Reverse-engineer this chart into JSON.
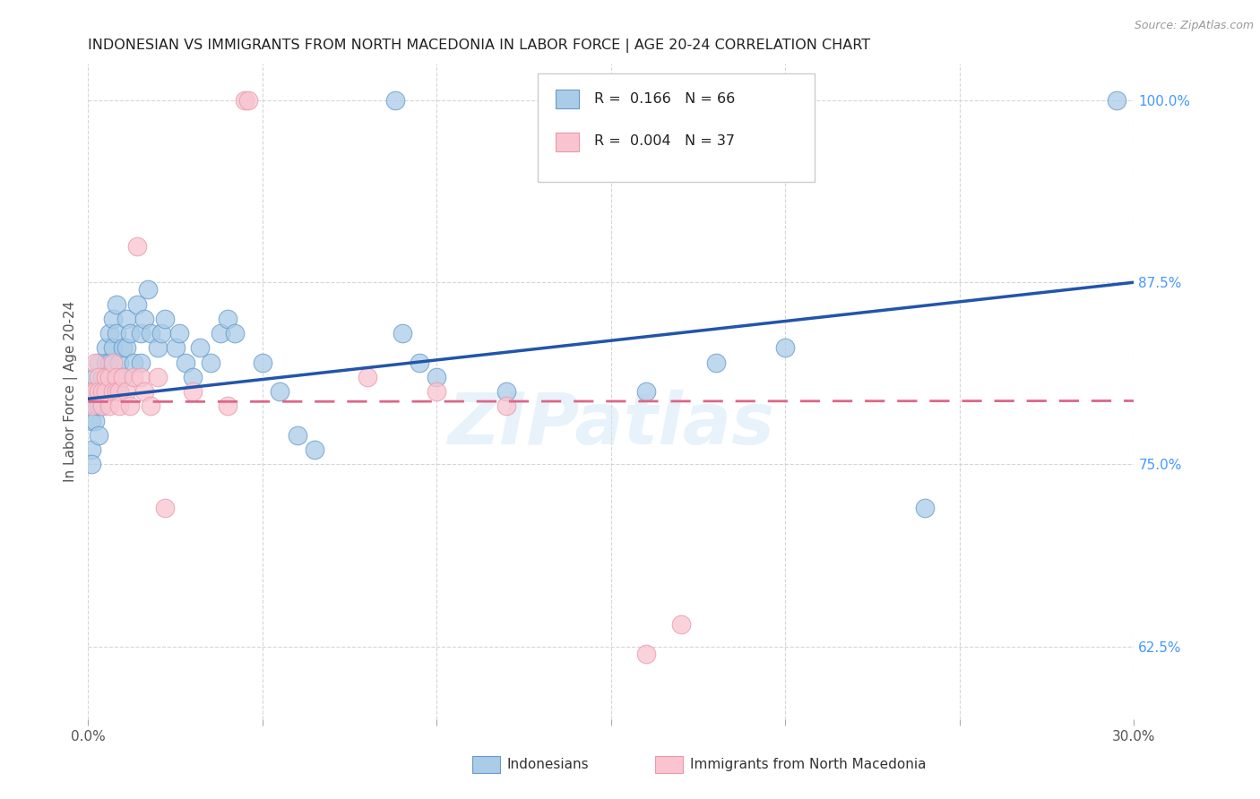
{
  "title": "INDONESIAN VS IMMIGRANTS FROM NORTH MACEDONIA IN LABOR FORCE | AGE 20-24 CORRELATION CHART",
  "source": "Source: ZipAtlas.com",
  "ylabel": "In Labor Force | Age 20-24",
  "xlim": [
    0.0,
    0.3
  ],
  "ylim": [
    0.575,
    1.025
  ],
  "xtick_positions": [
    0.0,
    0.05,
    0.1,
    0.15,
    0.2,
    0.25,
    0.3
  ],
  "xticklabels": [
    "0.0%",
    "",
    "",
    "",
    "",
    "",
    "30.0%"
  ],
  "ytick_positions": [
    0.625,
    0.75,
    0.875,
    1.0
  ],
  "yticklabels": [
    "62.5%",
    "75.0%",
    "87.5%",
    "100.0%"
  ],
  "blue_color": "#aacce8",
  "blue_edge_color": "#6699cc",
  "pink_color": "#f9c4d0",
  "pink_edge_color": "#e89aaa",
  "blue_line_color": "#2255aa",
  "pink_line_color": "#dd6688",
  "background_color": "#ffffff",
  "grid_color": "#cccccc",
  "legend_R_blue": "0.166",
  "legend_N_blue": "66",
  "legend_R_pink": "0.004",
  "legend_N_pink": "37",
  "watermark": "ZIPatlas",
  "blue_x": [
    0.001,
    0.001,
    0.001,
    0.001,
    0.001,
    0.002,
    0.002,
    0.002,
    0.002,
    0.003,
    0.003,
    0.003,
    0.003,
    0.004,
    0.004,
    0.004,
    0.005,
    0.005,
    0.005,
    0.006,
    0.006,
    0.006,
    0.007,
    0.007,
    0.008,
    0.008,
    0.009,
    0.009,
    0.01,
    0.01,
    0.011,
    0.011,
    0.012,
    0.013,
    0.014,
    0.015,
    0.015,
    0.016,
    0.017,
    0.018,
    0.02,
    0.021,
    0.022,
    0.025,
    0.026,
    0.028,
    0.03,
    0.032,
    0.035,
    0.038,
    0.04,
    0.042,
    0.05,
    0.055,
    0.06,
    0.065,
    0.09,
    0.095,
    0.1,
    0.12,
    0.16,
    0.18,
    0.2,
    0.24,
    0.295,
    0.088
  ],
  "blue_y": [
    0.8,
    0.79,
    0.78,
    0.76,
    0.75,
    0.81,
    0.8,
    0.79,
    0.78,
    0.82,
    0.8,
    0.79,
    0.77,
    0.81,
    0.8,
    0.79,
    0.83,
    0.82,
    0.8,
    0.84,
    0.82,
    0.8,
    0.85,
    0.83,
    0.86,
    0.84,
    0.82,
    0.8,
    0.83,
    0.81,
    0.85,
    0.83,
    0.84,
    0.82,
    0.86,
    0.84,
    0.82,
    0.85,
    0.87,
    0.84,
    0.83,
    0.84,
    0.85,
    0.83,
    0.84,
    0.82,
    0.81,
    0.83,
    0.82,
    0.84,
    0.85,
    0.84,
    0.82,
    0.8,
    0.77,
    0.76,
    0.84,
    0.82,
    0.81,
    0.8,
    0.8,
    0.82,
    0.83,
    0.72,
    1.0,
    1.0
  ],
  "pink_x": [
    0.001,
    0.001,
    0.002,
    0.002,
    0.003,
    0.003,
    0.004,
    0.004,
    0.005,
    0.005,
    0.006,
    0.006,
    0.007,
    0.007,
    0.008,
    0.008,
    0.009,
    0.009,
    0.01,
    0.011,
    0.012,
    0.013,
    0.014,
    0.015,
    0.016,
    0.018,
    0.02,
    0.022,
    0.03,
    0.04,
    0.045,
    0.046,
    0.08,
    0.1,
    0.12,
    0.17,
    0.16
  ],
  "pink_y": [
    0.8,
    0.79,
    0.82,
    0.8,
    0.81,
    0.8,
    0.8,
    0.79,
    0.81,
    0.8,
    0.79,
    0.81,
    0.82,
    0.8,
    0.81,
    0.8,
    0.8,
    0.79,
    0.81,
    0.8,
    0.79,
    0.81,
    0.9,
    0.81,
    0.8,
    0.79,
    0.81,
    0.72,
    0.8,
    0.79,
    1.0,
    1.0,
    0.81,
    0.8,
    0.79,
    0.64,
    0.62
  ]
}
